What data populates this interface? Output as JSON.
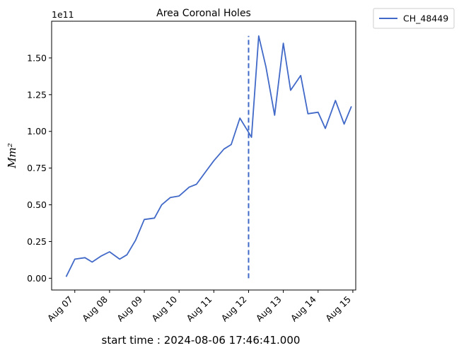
{
  "chart_data": {
    "type": "line",
    "title": "Area Coronal Holes",
    "xlabel": "start time : 2024-08-06 17:46:41.000",
    "ylabel": "Mm²",
    "y_scale_label": "1e11",
    "ylim": [
      -0.08,
      1.75
    ],
    "xlim": [
      "2024-08-06T08:00",
      "2024-08-15T02:00"
    ],
    "yticks": [
      0.0,
      0.25,
      0.5,
      0.75,
      1.0,
      1.25,
      1.5
    ],
    "ytick_labels": [
      "0.00",
      "0.25",
      "0.50",
      "0.75",
      "1.00",
      "1.25",
      "1.50"
    ],
    "xticks": [
      "2024-08-07",
      "2024-08-08",
      "2024-08-09",
      "2024-08-10",
      "2024-08-11",
      "2024-08-12",
      "2024-08-13",
      "2024-08-14",
      "2024-08-15"
    ],
    "xtick_labels": [
      "Aug 07",
      "Aug 08",
      "Aug 09",
      "Aug 10",
      "Aug 11",
      "Aug 12",
      "Aug 13",
      "Aug 14",
      "Aug 15"
    ],
    "grid": false,
    "legend_position": "outside-top-right",
    "line_color": "#4169c8",
    "series": [
      {
        "name": "CH_48449",
        "x": [
          "2024-08-06T18:00",
          "2024-08-07T00:00",
          "2024-08-07T07:00",
          "2024-08-07T12:00",
          "2024-08-07T18:00",
          "2024-08-08T00:00",
          "2024-08-08T07:00",
          "2024-08-08T12:00",
          "2024-08-08T18:00",
          "2024-08-09T00:00",
          "2024-08-09T07:00",
          "2024-08-09T12:00",
          "2024-08-09T18:00",
          "2024-08-10T00:00",
          "2024-08-10T07:00",
          "2024-08-10T12:00",
          "2024-08-10T18:00",
          "2024-08-11T00:00",
          "2024-08-11T07:00",
          "2024-08-11T12:00",
          "2024-08-11T18:00",
          "2024-08-11T23:00",
          "2024-08-12T02:00",
          "2024-08-12T07:00",
          "2024-08-12T12:00",
          "2024-08-12T18:00",
          "2024-08-13T00:00",
          "2024-08-13T05:00",
          "2024-08-13T12:00",
          "2024-08-13T17:00",
          "2024-08-14T00:00",
          "2024-08-14T05:00",
          "2024-08-14T12:00",
          "2024-08-14T18:00",
          "2024-08-14T23:00"
        ],
        "values": [
          0.01,
          0.13,
          0.14,
          0.11,
          0.15,
          0.18,
          0.13,
          0.16,
          0.26,
          0.4,
          0.41,
          0.5,
          0.55,
          0.56,
          0.62,
          0.64,
          0.72,
          0.8,
          0.88,
          0.91,
          1.09,
          1.01,
          0.96,
          1.65,
          1.44,
          1.11,
          1.6,
          1.28,
          1.38,
          1.12,
          1.13,
          1.02,
          1.21,
          1.05,
          1.17
        ]
      }
    ],
    "vertical_marker": {
      "x": "2024-08-12T00:00",
      "y_range": [
        0.0,
        1.65
      ],
      "style": "dashed"
    }
  }
}
